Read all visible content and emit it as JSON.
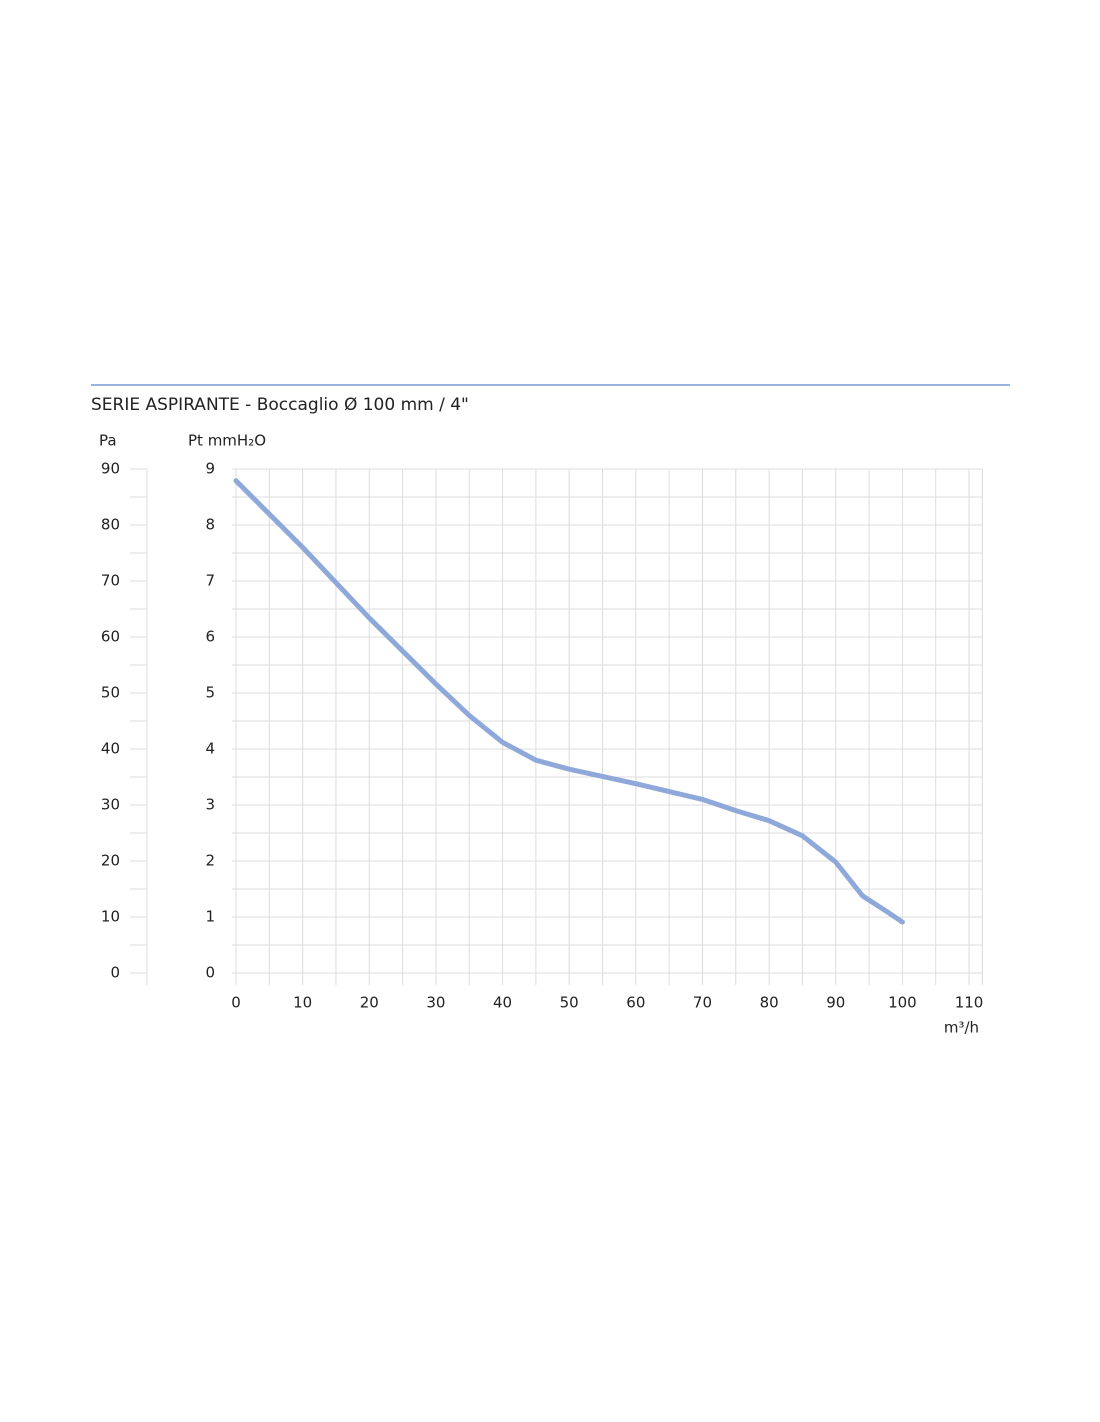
{
  "chart_data": {
    "type": "line",
    "title": "SERIE ASPIRANTE  - Boccaglio Ø 100 mm / 4\"",
    "y_label": "Pt mmH₂O",
    "y2_label": "Pa",
    "x_label": "m³/h",
    "x": [
      0,
      10,
      20,
      30,
      35,
      40,
      45,
      50,
      60,
      70,
      75,
      80,
      85,
      90,
      94,
      98,
      100
    ],
    "series": [
      {
        "color": "#8ea8da",
        "values": [
          8.79,
          7.6,
          6.34,
          5.16,
          4.6,
          4.12,
          3.8,
          3.64,
          3.38,
          3.1,
          2.9,
          2.72,
          2.45,
          1.98,
          1.38,
          1.07,
          0.91
        ]
      }
    ],
    "xlim": [
      0,
      112
    ],
    "xticks": [
      0,
      10,
      20,
      30,
      40,
      50,
      60,
      70,
      80,
      90,
      100,
      110
    ],
    "xminorticks": [
      5,
      15,
      25,
      35,
      45,
      55,
      65,
      75,
      85,
      95,
      105
    ],
    "ylim": [
      0,
      9
    ],
    "yticks": [
      0,
      1,
      2,
      3,
      4,
      5,
      6,
      7,
      8,
      9
    ],
    "yminorticks": [
      0.5,
      1.5,
      2.5,
      3.5,
      4.5,
      5.5,
      6.5,
      7.5,
      8.5
    ],
    "y2lim": [
      0,
      90
    ],
    "y2ticks": [
      0,
      10,
      20,
      30,
      40,
      50,
      60,
      70,
      80,
      90
    ],
    "grid": true,
    "rule_color": "#9ab4e0"
  }
}
